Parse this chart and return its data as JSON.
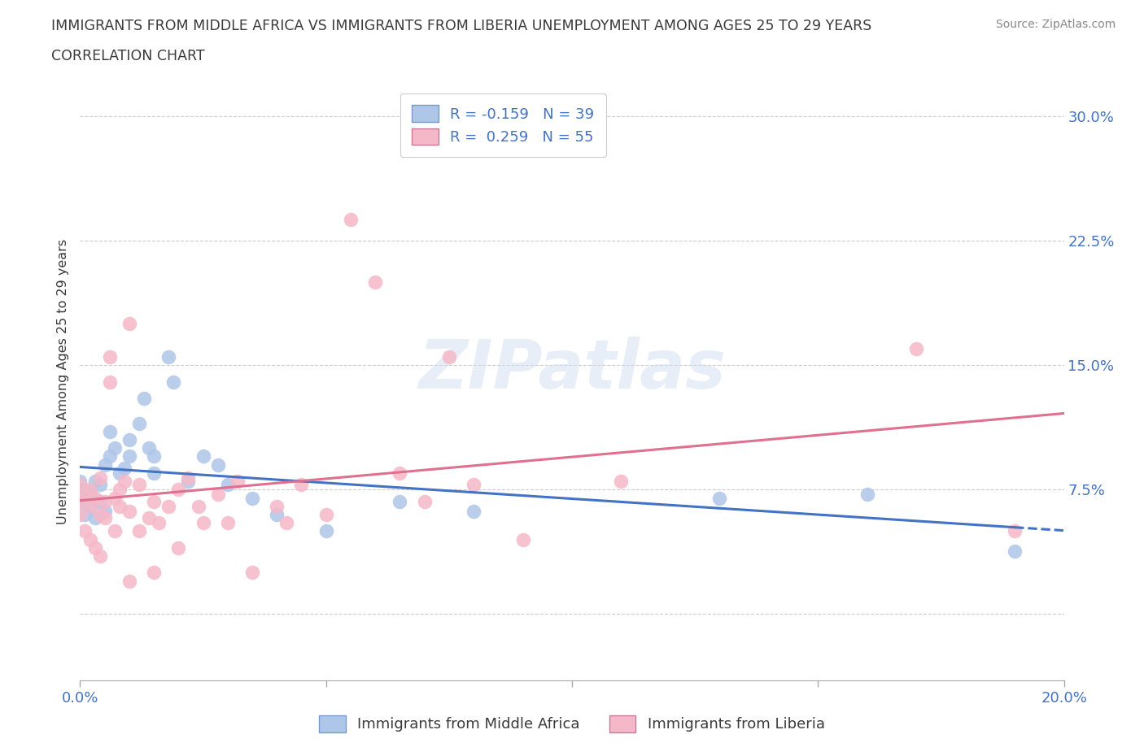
{
  "title_line1": "IMMIGRANTS FROM MIDDLE AFRICA VS IMMIGRANTS FROM LIBERIA UNEMPLOYMENT AMONG AGES 25 TO 29 YEARS",
  "title_line2": "CORRELATION CHART",
  "source": "Source: ZipAtlas.com",
  "ylabel": "Unemployment Among Ages 25 to 29 years",
  "xlim": [
    0.0,
    0.2
  ],
  "ylim": [
    -0.04,
    0.32
  ],
  "yticks": [
    0.0,
    0.075,
    0.15,
    0.225,
    0.3
  ],
  "ytick_right_labels": [
    "",
    "7.5%",
    "15.0%",
    "22.5%",
    "30.0%"
  ],
  "R_blue": -0.159,
  "N_blue": 39,
  "R_pink": 0.259,
  "N_pink": 55,
  "legend_label_blue": "Immigrants from Middle Africa",
  "legend_label_pink": "Immigrants from Liberia",
  "blue_color": "#aec6e8",
  "pink_color": "#f5b8c8",
  "blue_line_color": "#4472c4",
  "pink_line_color": "#e07090",
  "watermark": "ZIPatlas",
  "title_color": "#3a3a3a",
  "axis_label_color": "#4472c4",
  "blue_scatter": [
    [
      0.0,
      0.08
    ],
    [
      0.0,
      0.07
    ],
    [
      0.0,
      0.068
    ],
    [
      0.001,
      0.075
    ],
    [
      0.001,
      0.06
    ],
    [
      0.002,
      0.072
    ],
    [
      0.002,
      0.065
    ],
    [
      0.003,
      0.08
    ],
    [
      0.003,
      0.058
    ],
    [
      0.004,
      0.068
    ],
    [
      0.004,
      0.078
    ],
    [
      0.005,
      0.09
    ],
    [
      0.005,
      0.062
    ],
    [
      0.006,
      0.11
    ],
    [
      0.006,
      0.095
    ],
    [
      0.007,
      0.1
    ],
    [
      0.008,
      0.085
    ],
    [
      0.009,
      0.088
    ],
    [
      0.01,
      0.105
    ],
    [
      0.01,
      0.095
    ],
    [
      0.012,
      0.115
    ],
    [
      0.013,
      0.13
    ],
    [
      0.014,
      0.1
    ],
    [
      0.015,
      0.085
    ],
    [
      0.015,
      0.095
    ],
    [
      0.018,
      0.155
    ],
    [
      0.019,
      0.14
    ],
    [
      0.022,
      0.08
    ],
    [
      0.025,
      0.095
    ],
    [
      0.028,
      0.09
    ],
    [
      0.03,
      0.078
    ],
    [
      0.035,
      0.07
    ],
    [
      0.04,
      0.06
    ],
    [
      0.05,
      0.05
    ],
    [
      0.065,
      0.068
    ],
    [
      0.08,
      0.062
    ],
    [
      0.13,
      0.07
    ],
    [
      0.16,
      0.072
    ],
    [
      0.19,
      0.038
    ]
  ],
  "pink_scatter": [
    [
      0.0,
      0.078
    ],
    [
      0.0,
      0.068
    ],
    [
      0.0,
      0.06
    ],
    [
      0.001,
      0.072
    ],
    [
      0.001,
      0.05
    ],
    [
      0.002,
      0.065
    ],
    [
      0.002,
      0.045
    ],
    [
      0.002,
      0.075
    ],
    [
      0.003,
      0.07
    ],
    [
      0.003,
      0.04
    ],
    [
      0.004,
      0.06
    ],
    [
      0.004,
      0.035
    ],
    [
      0.004,
      0.082
    ],
    [
      0.005,
      0.068
    ],
    [
      0.005,
      0.058
    ],
    [
      0.006,
      0.155
    ],
    [
      0.006,
      0.14
    ],
    [
      0.007,
      0.07
    ],
    [
      0.007,
      0.05
    ],
    [
      0.008,
      0.065
    ],
    [
      0.008,
      0.075
    ],
    [
      0.009,
      0.08
    ],
    [
      0.01,
      0.062
    ],
    [
      0.01,
      0.175
    ],
    [
      0.01,
      0.02
    ],
    [
      0.012,
      0.05
    ],
    [
      0.012,
      0.078
    ],
    [
      0.014,
      0.058
    ],
    [
      0.015,
      0.025
    ],
    [
      0.015,
      0.068
    ],
    [
      0.016,
      0.055
    ],
    [
      0.018,
      0.065
    ],
    [
      0.02,
      0.075
    ],
    [
      0.02,
      0.04
    ],
    [
      0.022,
      0.082
    ],
    [
      0.024,
      0.065
    ],
    [
      0.025,
      0.055
    ],
    [
      0.028,
      0.072
    ],
    [
      0.03,
      0.055
    ],
    [
      0.032,
      0.08
    ],
    [
      0.035,
      0.025
    ],
    [
      0.04,
      0.065
    ],
    [
      0.042,
      0.055
    ],
    [
      0.045,
      0.078
    ],
    [
      0.05,
      0.06
    ],
    [
      0.055,
      0.238
    ],
    [
      0.06,
      0.2
    ],
    [
      0.065,
      0.085
    ],
    [
      0.07,
      0.068
    ],
    [
      0.075,
      0.155
    ],
    [
      0.08,
      0.078
    ],
    [
      0.09,
      0.045
    ],
    [
      0.11,
      0.08
    ],
    [
      0.17,
      0.16
    ],
    [
      0.19,
      0.05
    ]
  ]
}
